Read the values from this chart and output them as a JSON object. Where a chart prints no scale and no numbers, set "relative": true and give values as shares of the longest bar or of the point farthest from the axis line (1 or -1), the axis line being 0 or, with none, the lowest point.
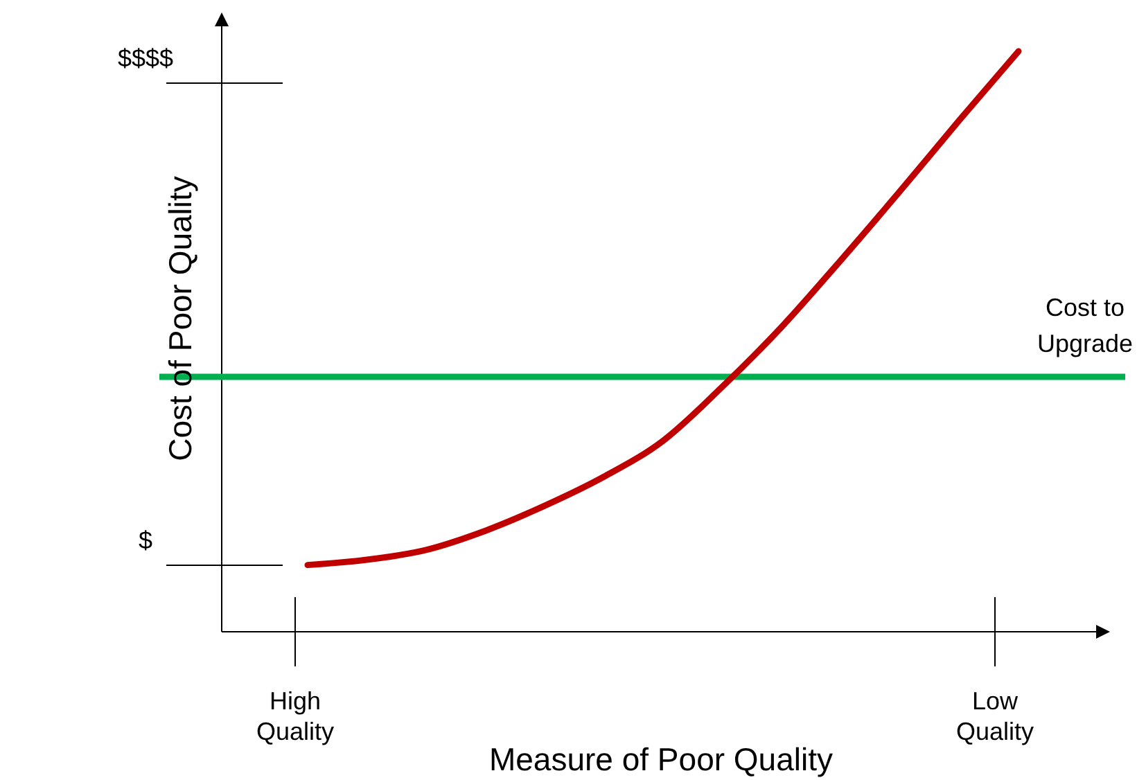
{
  "chart_data": {
    "type": "line",
    "relative": true,
    "xlabel": "Measure of Poor Quality",
    "ylabel": "Cost of Poor Quality",
    "categories": [
      null,
      null,
      null,
      null,
      null,
      null,
      null,
      null,
      null,
      null,
      null,
      null,
      null
    ],
    "series": [
      {
        "color": "#c00000",
        "values": [
          0.115,
          0.124,
          0.141,
          0.174,
          0.217,
          0.267,
          0.329,
          0.422,
          0.525,
          0.64,
          0.759,
          0.881,
          1
        ]
      }
    ],
    "annotations": [
      "$",
      "$$$$",
      "High Quality",
      "Low Quality"
    ],
    "ref_lines": [
      {
        "axis": "y",
        "value": 0.439,
        "label": "Cost to Upgrade",
        "color": "#00b050"
      }
    ],
    "grid": false,
    "marker": "none",
    "line_style": "solid"
  }
}
